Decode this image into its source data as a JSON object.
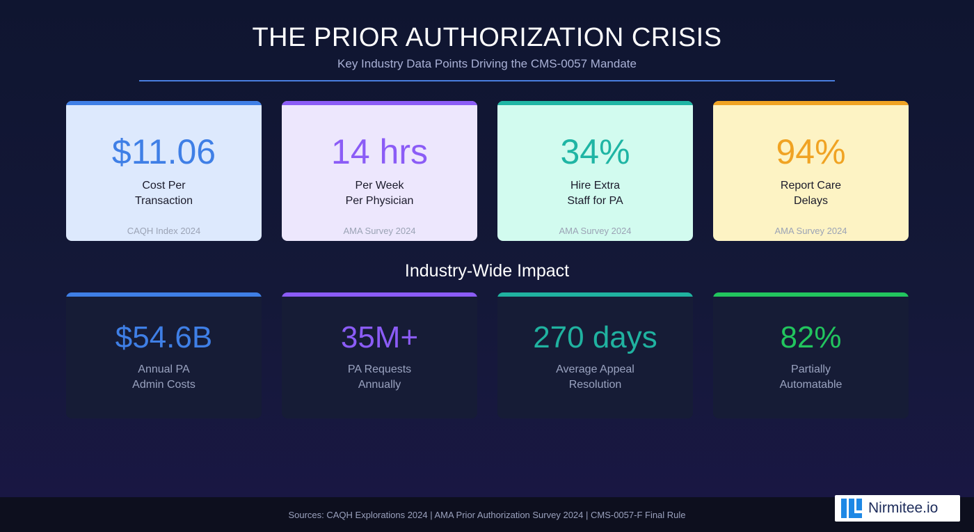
{
  "header": {
    "title": "THE PRIOR AUTHORIZATION CRISIS",
    "subtitle": "Key Industry Data Points Driving the CMS-0057 Mandate"
  },
  "stats": [
    {
      "value": "$11.06",
      "label_line1": "Cost Per",
      "label_line2": "Transaction",
      "source": "CAQH Index 2024",
      "accent": "#3f7fe6",
      "bg": "#dde9fd"
    },
    {
      "value": "14 hrs",
      "label_line1": "Per Week",
      "label_line2": "Per Physician",
      "source": "AMA Survey 2024",
      "accent": "#8b5cf6",
      "bg": "#ede7fd"
    },
    {
      "value": "34%",
      "label_line1": "Hire Extra",
      "label_line2": "Staff for PA",
      "source": "AMA Survey 2024",
      "accent": "#1fb5a4",
      "bg": "#d2fbef"
    },
    {
      "value": "94%",
      "label_line1": "Report Care",
      "label_line2": "Delays",
      "source": "AMA Survey 2024",
      "accent": "#f0a323",
      "bg": "#fdf3c4"
    }
  ],
  "impact": {
    "title": "Industry-Wide Impact",
    "items": [
      {
        "value": "$54.6B",
        "label_line1": "Annual PA",
        "label_line2": "Admin Costs",
        "accent": "#3f7fe6"
      },
      {
        "value": "35M+",
        "label_line1": "PA Requests",
        "label_line2": "Annually",
        "accent": "#8b5cf6"
      },
      {
        "value": "270 days",
        "label_line1": "Average Appeal",
        "label_line2": "Resolution",
        "accent": "#20b2a0"
      },
      {
        "value": "82%",
        "label_line1": "Partially",
        "label_line2": "Automatable",
        "accent": "#22c55e"
      }
    ]
  },
  "footer": {
    "sources": "Sources: CAQH Explorations 2024 | AMA Prior Authorization Survey 2024 | CMS-0057-F Final Rule"
  },
  "logo": {
    "text": "Nirmitee.io",
    "icon": "nirmitee-logo-icon",
    "color": "#1e88e5"
  }
}
